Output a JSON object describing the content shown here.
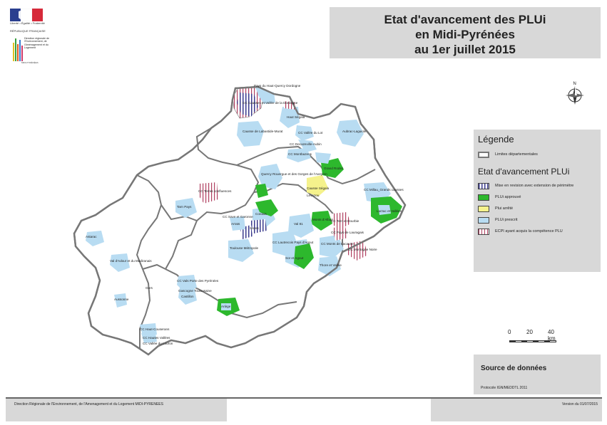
{
  "logo": {
    "marianne": "Liberté • Égalité • Fraternité",
    "republique": "RÉPUBLIQUE FRANÇAISE",
    "dreal": "Direction régionale de l'Environnement, de l'Aménagement et du Logement",
    "region": "MIDI-PYRÉNÉES"
  },
  "title": {
    "line1": "Etat d'avancement des PLUi",
    "line2": "en Midi-Pyrénées",
    "line3": "au 1er juillet 2015"
  },
  "legend": {
    "heading": "Légende",
    "limits_label": "Limites départementales",
    "status_heading": "Etat d'avancement PLUi",
    "items": [
      {
        "label": "Mise en revision avec extension de périmètre",
        "pattern": "hatch-blue"
      },
      {
        "label": "PLUi approuvé",
        "color": "#2db82d"
      },
      {
        "label": "Plui arrêté",
        "color": "#f5f28c"
      },
      {
        "label": "PLUi prescrit",
        "color": "#b8dcf2"
      },
      {
        "label": "ECPI ayant acquis la compétence PLU",
        "pattern": "hatch-red"
      }
    ]
  },
  "scale": {
    "ticks": [
      "0",
      "20",
      "40 km"
    ]
  },
  "source": {
    "heading": "Source de données",
    "text": "Protocole IGN/MEDDTL 2011"
  },
  "footer": {
    "left": "Direction Régionale de l'Environnement, de l'Amenagement et du Logement MIDI-PYRENEES",
    "right": "Version du 01/07/2015"
  },
  "colors": {
    "approved": "#2db82d",
    "arrested": "#f5f28c",
    "prescribed": "#b8dcf2",
    "revision_hatch": "#3a3a8c",
    "ecpi_hatch": "#b04060",
    "borders": "#777777",
    "panel": "#d8d8d8"
  },
  "map_labels": [
    "Pays du Haut-Quercy Dordogne",
    "CC Causses et Vallée de la Dordogne",
    "Haut Ségala",
    "Causse de Labastide-Murat",
    "CC Vallée du Lot",
    "CC Decazeville-Aubin",
    "Aubrac-Laguiole",
    "CC Montbazens",
    "Grand Rodez",
    "Causse Ségala",
    "Quercy Rouergue et des Gorges de l'Aveyron",
    "Lévezou",
    "CC Millau_Grands causses",
    "CC Terres confluences",
    "CC Tarn et Dourbie",
    "Larzac et Vallées",
    "Monts d'Alban",
    "Val 81",
    "Cordais",
    "Saves",
    "CC Save et Garonne",
    "CC Lautrecois Pays d'Agout",
    "Sor et Agout",
    "CC Monts de Lacaune",
    "Toulouse Métropole",
    "Arrats",
    "Val d'Adour et du Madiranais",
    "Astarac",
    "Tarn Pays",
    "CC Vals Porte des Pyrénées",
    "Gascogne Toulousaine",
    "Gers",
    "Aussonne",
    "Castillon",
    "Ariège",
    "CC Haut-Couserans",
    "CC Hautes Vallées",
    "CC Vallée du Louron",
    "Thore et Vallée",
    "CC Pays de Lauragais",
    "CC Montagne Noire"
  ]
}
